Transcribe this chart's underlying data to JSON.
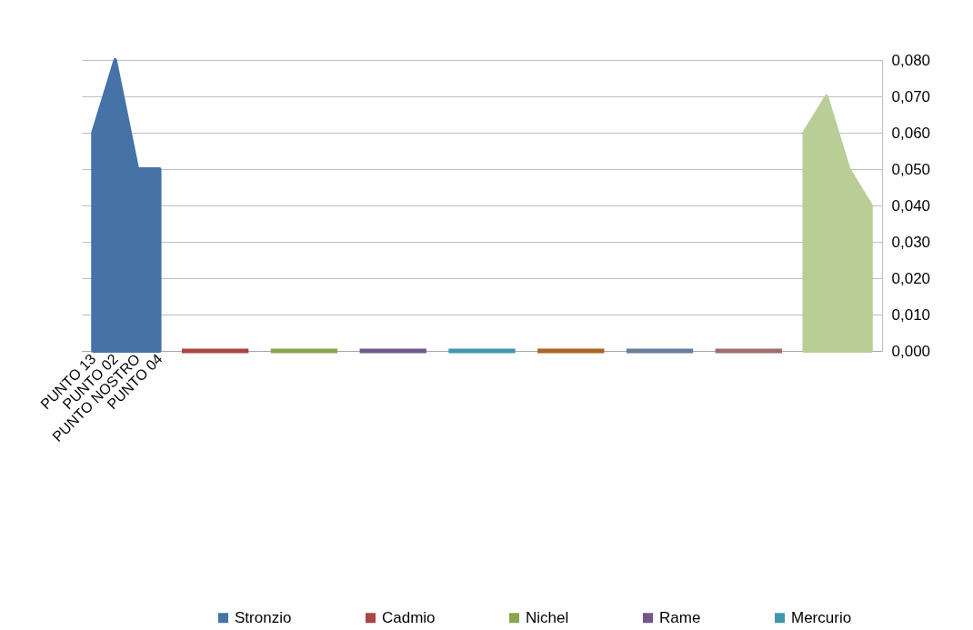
{
  "chart_data": {
    "type": "area",
    "categories": [
      "PUNTO 13",
      "PUNTO 02",
      "PUNTO NOSTRO",
      "PUNTO 04",
      null,
      null,
      null,
      null,
      null,
      null,
      null,
      null,
      null,
      null,
      null,
      null,
      null,
      null,
      null,
      null,
      null,
      null,
      null,
      null,
      null,
      null,
      null,
      null,
      null,
      null,
      null,
      null,
      null,
      null,
      null,
      null
    ],
    "series": [
      {
        "name": "Stronzio",
        "color": "#4572a7",
        "values": [
          0.06,
          0.08,
          0.05,
          0.05,
          null,
          null,
          null,
          null,
          null,
          null,
          null,
          null,
          null,
          null,
          null,
          null,
          null,
          null,
          null,
          null,
          null,
          null,
          null,
          null,
          null,
          null,
          null,
          null,
          null,
          null,
          null,
          null,
          null,
          null,
          null,
          null
        ]
      },
      {
        "name": "Cadmio",
        "type": "line",
        "color": "#aa4643",
        "values": [
          null,
          null,
          null,
          null,
          0,
          0,
          0,
          0,
          null,
          null,
          null,
          null,
          null,
          null,
          null,
          null,
          null,
          null,
          null,
          null,
          null,
          null,
          null,
          null,
          null,
          null,
          null,
          null,
          null,
          null,
          null,
          null,
          null,
          null,
          null,
          null
        ]
      },
      {
        "name": "Nichel",
        "type": "line",
        "color": "#89a54e",
        "values": [
          null,
          null,
          null,
          null,
          null,
          null,
          null,
          null,
          0,
          0,
          0,
          0,
          null,
          null,
          null,
          null,
          null,
          null,
          null,
          null,
          null,
          null,
          null,
          null,
          null,
          null,
          null,
          null,
          null,
          null,
          null,
          null,
          null,
          null,
          null,
          null
        ]
      },
      {
        "name": "Rame",
        "type": "line",
        "color": "#71588f",
        "values": [
          null,
          null,
          null,
          null,
          null,
          null,
          null,
          null,
          null,
          null,
          null,
          null,
          0,
          0,
          0,
          0,
          null,
          null,
          null,
          null,
          null,
          null,
          null,
          null,
          null,
          null,
          null,
          null,
          null,
          null,
          null,
          null,
          null,
          null,
          null,
          null
        ]
      },
      {
        "name": "Mercurio",
        "type": "line",
        "color": "#4198af",
        "values": [
          null,
          null,
          null,
          null,
          null,
          null,
          null,
          null,
          null,
          null,
          null,
          null,
          null,
          null,
          null,
          null,
          0,
          0,
          0,
          0,
          null,
          null,
          null,
          null,
          null,
          null,
          null,
          null,
          null,
          null,
          null,
          null,
          null,
          null,
          null,
          null
        ]
      },
      {
        "type": "line",
        "color": "#a86428",
        "values": [
          null,
          null,
          null,
          null,
          null,
          null,
          null,
          null,
          null,
          null,
          null,
          null,
          null,
          null,
          null,
          null,
          null,
          null,
          null,
          null,
          0,
          0,
          0,
          0,
          null,
          null,
          null,
          null,
          null,
          null,
          null,
          null,
          null,
          null,
          null,
          null
        ]
      },
      {
        "type": "line",
        "color": "#6b7e9e",
        "values": [
          null,
          null,
          null,
          null,
          null,
          null,
          null,
          null,
          null,
          null,
          null,
          null,
          null,
          null,
          null,
          null,
          null,
          null,
          null,
          null,
          null,
          null,
          null,
          null,
          0,
          0,
          0,
          0,
          null,
          null,
          null,
          null,
          null,
          null,
          null,
          null
        ]
      },
      {
        "type": "line",
        "color": "#a06e6e",
        "values": [
          null,
          null,
          null,
          null,
          null,
          null,
          null,
          null,
          null,
          null,
          null,
          null,
          null,
          null,
          null,
          null,
          null,
          null,
          null,
          null,
          null,
          null,
          null,
          null,
          null,
          null,
          null,
          null,
          0,
          0,
          0,
          0,
          null,
          null,
          null,
          null
        ]
      },
      {
        "color": "#b9cd96",
        "values": [
          null,
          null,
          null,
          null,
          null,
          null,
          null,
          null,
          null,
          null,
          null,
          null,
          null,
          null,
          null,
          null,
          null,
          null,
          null,
          null,
          null,
          null,
          null,
          null,
          null,
          null,
          null,
          null,
          null,
          null,
          null,
          null,
          0.06,
          0.07,
          0.05,
          0.04
        ]
      }
    ],
    "ylim": [
      0,
      0.08
    ],
    "yticks": [
      {
        "value": 0,
        "label": "0,000"
      },
      {
        "value": 0.01,
        "label": "0,010"
      },
      {
        "value": 0.02,
        "label": "0,020"
      },
      {
        "value": 0.03,
        "label": "0,030"
      },
      {
        "value": 0.04,
        "label": "0,040"
      },
      {
        "value": 0.05,
        "label": "0,050"
      },
      {
        "value": 0.06,
        "label": "0,060"
      },
      {
        "value": 0.07,
        "label": "0,070"
      },
      {
        "value": 0.08,
        "label": "0,080"
      }
    ],
    "grid": "y",
    "legend": "bottom"
  }
}
